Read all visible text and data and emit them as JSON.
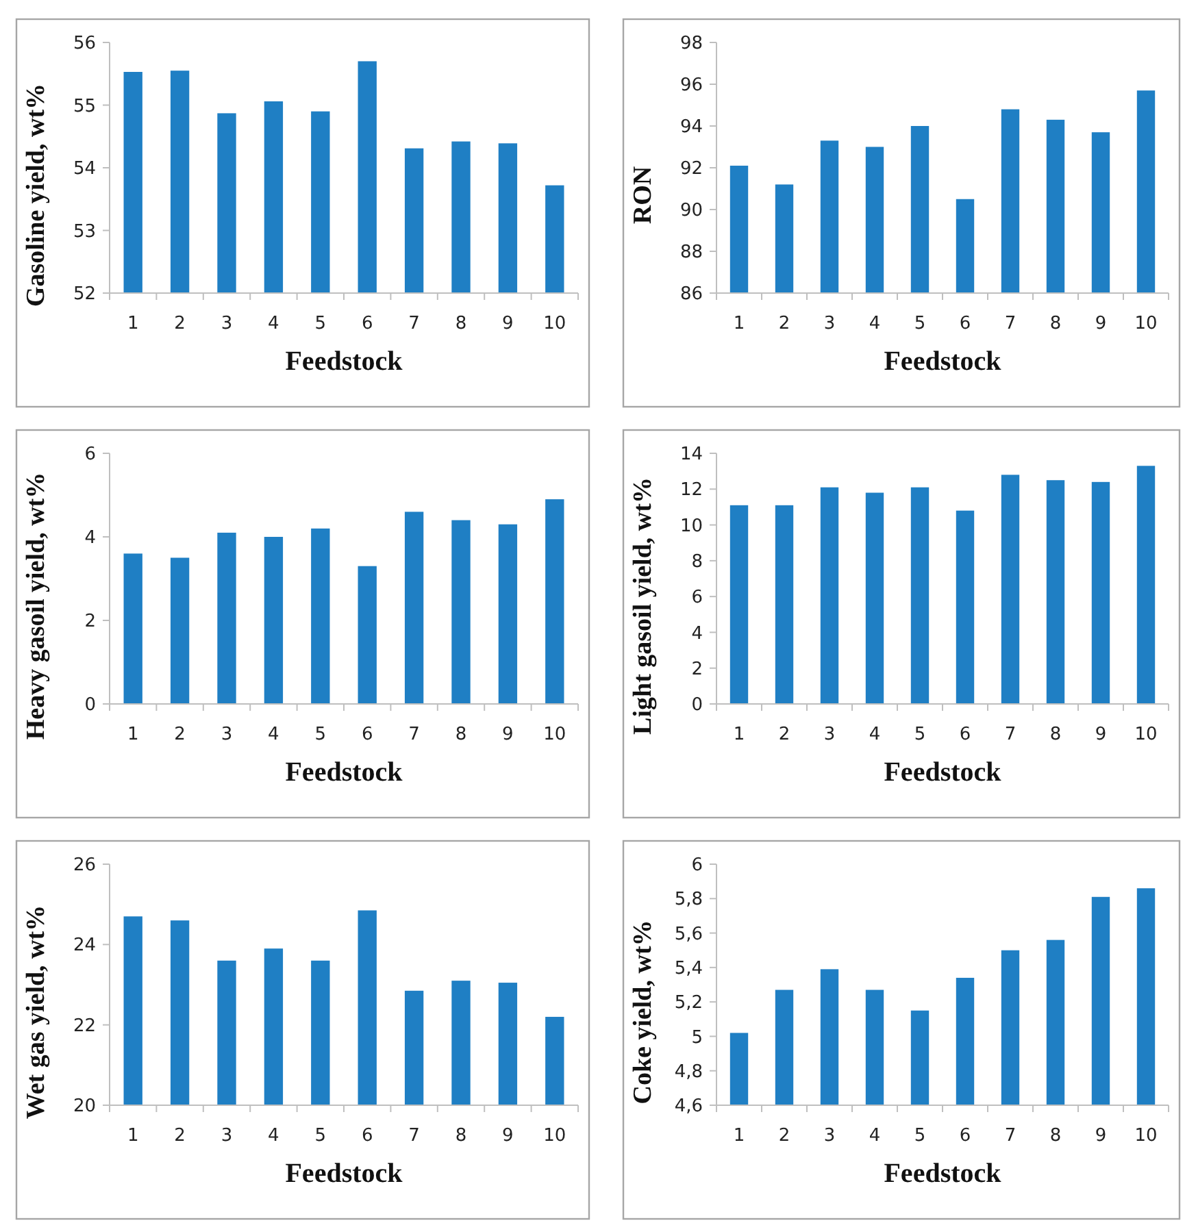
{
  "chart_data": [
    {
      "type": "bar",
      "ylabel": "Gasoline yield,  wt%",
      "xlabel": "Feedstock",
      "categories": [
        "1",
        "2",
        "3",
        "4",
        "5",
        "6",
        "7",
        "8",
        "9",
        "10"
      ],
      "values": [
        55.53,
        55.55,
        54.87,
        55.06,
        54.9,
        55.7,
        54.31,
        54.42,
        54.39,
        53.72
      ],
      "color": "#1f7fc4",
      "ylim": [
        52,
        56
      ],
      "yticks": [
        52,
        53,
        54,
        55,
        56
      ],
      "grid": false
    },
    {
      "type": "bar",
      "ylabel": "RON",
      "xlabel": "Feedstock",
      "categories": [
        "1",
        "2",
        "3",
        "4",
        "5",
        "6",
        "7",
        "8",
        "9",
        "10"
      ],
      "values": [
        92.1,
        91.2,
        93.3,
        93.0,
        94.0,
        90.5,
        94.8,
        94.3,
        93.7,
        95.7
      ],
      "color": "#1f7fc4",
      "ylim": [
        86,
        98
      ],
      "yticks": [
        86,
        88,
        90,
        92,
        94,
        96,
        98
      ],
      "grid": false
    },
    {
      "type": "bar",
      "ylabel": "Heavy gasoil yield,  wt%",
      "xlabel": "Feedstock",
      "categories": [
        "1",
        "2",
        "3",
        "4",
        "5",
        "6",
        "7",
        "8",
        "9",
        "10"
      ],
      "values": [
        3.6,
        3.5,
        4.1,
        4.0,
        4.2,
        3.3,
        4.6,
        4.4,
        4.3,
        4.9
      ],
      "color": "#1f7fc4",
      "ylim": [
        0,
        6
      ],
      "yticks": [
        0,
        2,
        4,
        6
      ],
      "grid": false
    },
    {
      "type": "bar",
      "ylabel": "Light gasoil yield,  wt%",
      "xlabel": "Feedstock",
      "categories": [
        "1",
        "2",
        "3",
        "4",
        "5",
        "6",
        "7",
        "8",
        "9",
        "10"
      ],
      "values": [
        11.1,
        11.1,
        12.1,
        11.8,
        12.1,
        10.8,
        12.8,
        12.5,
        12.4,
        13.3
      ],
      "color": "#1f7fc4",
      "ylim": [
        0,
        14
      ],
      "yticks": [
        0,
        2,
        4,
        6,
        8,
        10,
        12,
        14
      ],
      "grid": false
    },
    {
      "type": "bar",
      "ylabel": "Wet gas yield,  wt%",
      "xlabel": "Feedstock",
      "categories": [
        "1",
        "2",
        "3",
        "4",
        "5",
        "6",
        "7",
        "8",
        "9",
        "10"
      ],
      "values": [
        24.7,
        24.6,
        23.6,
        23.9,
        23.6,
        24.85,
        22.85,
        23.1,
        23.05,
        22.2
      ],
      "color": "#1f7fc4",
      "ylim": [
        20,
        26
      ],
      "yticks": [
        20,
        22,
        24,
        26
      ],
      "grid": false
    },
    {
      "type": "bar",
      "ylabel": "Coke yield,  wt%",
      "xlabel": "Feedstock",
      "categories": [
        "1",
        "2",
        "3",
        "4",
        "5",
        "6",
        "7",
        "8",
        "9",
        "10"
      ],
      "values": [
        5.02,
        5.27,
        5.39,
        5.27,
        5.15,
        5.34,
        5.5,
        5.56,
        5.81,
        5.86
      ],
      "color": "#1f7fc4",
      "ylim": [
        4.6,
        6
      ],
      "yticks": [
        {
          "value": 4.6,
          "label": "4,6"
        },
        {
          "value": 4.8,
          "label": "4,8"
        },
        {
          "value": 5,
          "label": "5"
        },
        {
          "value": 5.2,
          "label": "5,2"
        },
        {
          "value": 5.4,
          "label": "5,4"
        },
        {
          "value": 5.6,
          "label": "5,6"
        },
        {
          "value": 5.8,
          "label": "5,8"
        },
        {
          "value": 6,
          "label": "6"
        }
      ],
      "grid": false
    }
  ]
}
